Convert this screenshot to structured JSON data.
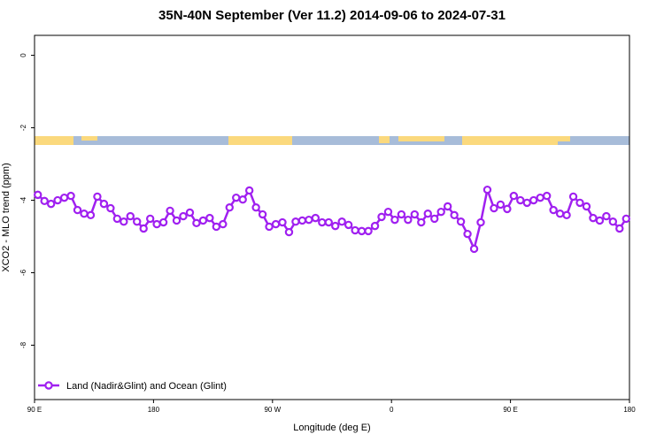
{
  "chart_data": {
    "type": "line",
    "title": "35N-40N September (Ver 11.2)   2014-09-06 to 2024-07-31",
    "xlabel": "Longitude (deg E)",
    "ylabel": "XCO2 - MLO trend (ppm)",
    "xlim": [
      90,
      540
    ],
    "ylim": [
      -9.5,
      0.55
    ],
    "xticks": [
      {
        "value": 90,
        "label": "90 E"
      },
      {
        "value": 180,
        "label": "180"
      },
      {
        "value": 270,
        "label": "90 W"
      },
      {
        "value": 360,
        "label": "0"
      },
      {
        "value": 450,
        "label": "90 E"
      },
      {
        "value": 540,
        "label": "180"
      }
    ],
    "yticks": [
      0,
      -2,
      -4,
      -6,
      -8
    ],
    "legend_position": "lower left",
    "x": [
      92.5,
      97.5,
      102.5,
      107.5,
      112.5,
      117.5,
      122.5,
      127.5,
      132.5,
      137.5,
      142.5,
      147.5,
      152.5,
      157.5,
      162.5,
      167.5,
      172.5,
      177.5,
      182.5,
      187.5,
      192.5,
      197.5,
      202.5,
      207.5,
      212.5,
      217.5,
      222.5,
      227.5,
      232.5,
      237.5,
      242.5,
      247.5,
      252.5,
      257.5,
      262.5,
      267.5,
      272.5,
      277.5,
      282.5,
      287.5,
      292.5,
      297.5,
      302.5,
      307.5,
      312.5,
      317.5,
      322.5,
      327.5,
      332.5,
      337.5,
      342.5,
      347.5,
      352.5,
      357.5,
      362.5,
      367.5,
      372.5,
      377.5,
      382.5,
      387.5,
      392.5,
      397.5,
      402.5,
      407.5,
      412.5,
      417.5,
      422.5,
      427.5,
      432.5,
      437.5,
      442.5,
      447.5,
      452.5,
      457.5,
      462.5,
      467.5,
      472.5,
      477.5,
      482.5,
      487.5,
      492.5,
      497.5,
      502.5,
      507.5,
      512.5,
      517.5,
      522.5,
      527.5,
      532.5,
      537.5
    ],
    "series": [
      {
        "name": "Land (Nadir&Glint) and Ocean (Glint)",
        "color": "#a020f0",
        "values": [
          -3.85,
          -4.02,
          -4.1,
          -4.0,
          -3.93,
          -3.88,
          -4.27,
          -4.37,
          -4.41,
          -3.9,
          -4.1,
          -4.22,
          -4.51,
          -4.59,
          -4.44,
          -4.59,
          -4.78,
          -4.51,
          -4.66,
          -4.61,
          -4.29,
          -4.56,
          -4.44,
          -4.34,
          -4.63,
          -4.56,
          -4.49,
          -4.73,
          -4.66,
          -4.2,
          -3.93,
          -3.98,
          -3.73,
          -4.2,
          -4.39,
          -4.73,
          -4.66,
          -4.61,
          -4.88,
          -4.59,
          -4.56,
          -4.54,
          -4.49,
          -4.61,
          -4.61,
          -4.71,
          -4.59,
          -4.68,
          -4.83,
          -4.85,
          -4.85,
          -4.71,
          -4.46,
          -4.32,
          -4.54,
          -4.39,
          -4.54,
          -4.39,
          -4.61,
          -4.37,
          -4.51,
          -4.32,
          -4.17,
          -4.41,
          -4.59,
          -4.93,
          -5.34,
          -4.61,
          -3.71,
          -4.22,
          -4.12,
          -4.24,
          -3.88,
          -4.0,
          -4.07,
          -4.0,
          -3.93,
          -3.88,
          -4.27,
          -4.37,
          -4.41,
          -3.9,
          -4.07,
          -4.17,
          -4.49,
          -4.56,
          -4.44,
          -4.59,
          -4.78,
          -4.51
        ]
      }
    ]
  }
}
